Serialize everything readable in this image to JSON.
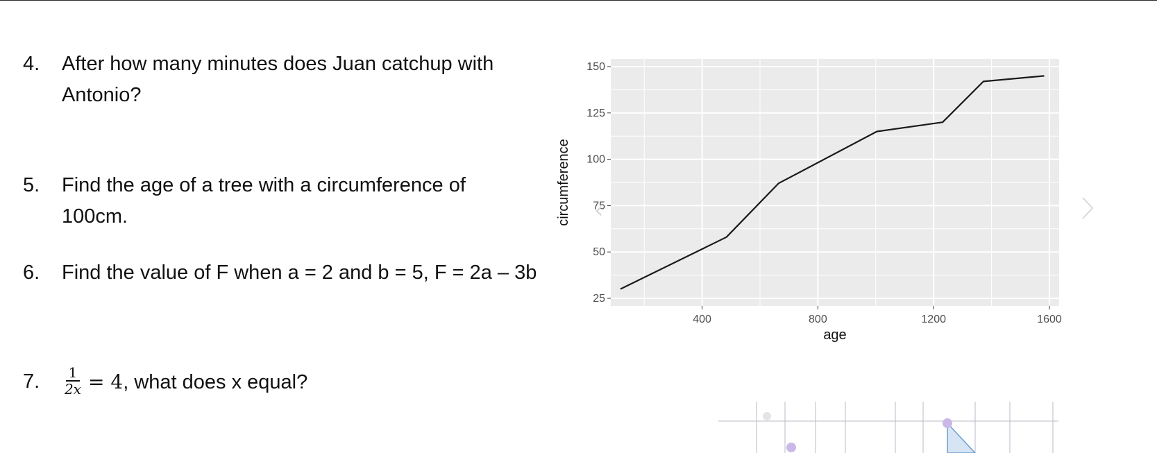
{
  "questions": [
    {
      "num": "4.",
      "line1": "After how many minutes does Juan catchup with",
      "line2": "Antonio?"
    },
    {
      "num": "5.",
      "line1": "Find the age of a tree with a circumference of",
      "line2": "100cm."
    },
    {
      "num": "6.",
      "line1": "Find the value of F when a = 2 and b = 5, F = 2a – 3b"
    },
    {
      "num": "7.",
      "frac_num": "1",
      "frac_den": "2x",
      "equation": "= 4",
      "rest": ", what does x equal?"
    }
  ],
  "nav": {
    "prev_icon": "chevron-left-icon",
    "next_icon": "chevron-right-icon"
  },
  "chart_data": {
    "type": "line",
    "xlabel": "age",
    "ylabel": "circumference",
    "xlim": [
      118,
      1600
    ],
    "ylim": [
      25,
      150
    ],
    "x_ticks": [
      400,
      800,
      1200,
      1600
    ],
    "y_ticks": [
      25,
      50,
      75,
      100,
      125,
      150
    ],
    "grid": true,
    "series": [
      {
        "x": [
          118,
          484,
          664,
          1004,
          1231,
          1372,
          1582
        ],
        "y": [
          30,
          58,
          87,
          115,
          120,
          142,
          145
        ]
      }
    ],
    "colors": {
      "panel": "#ebebeb",
      "grid": "#ffffff",
      "line": "#1a1a1a",
      "tick_text": "#4d4d4d"
    }
  }
}
